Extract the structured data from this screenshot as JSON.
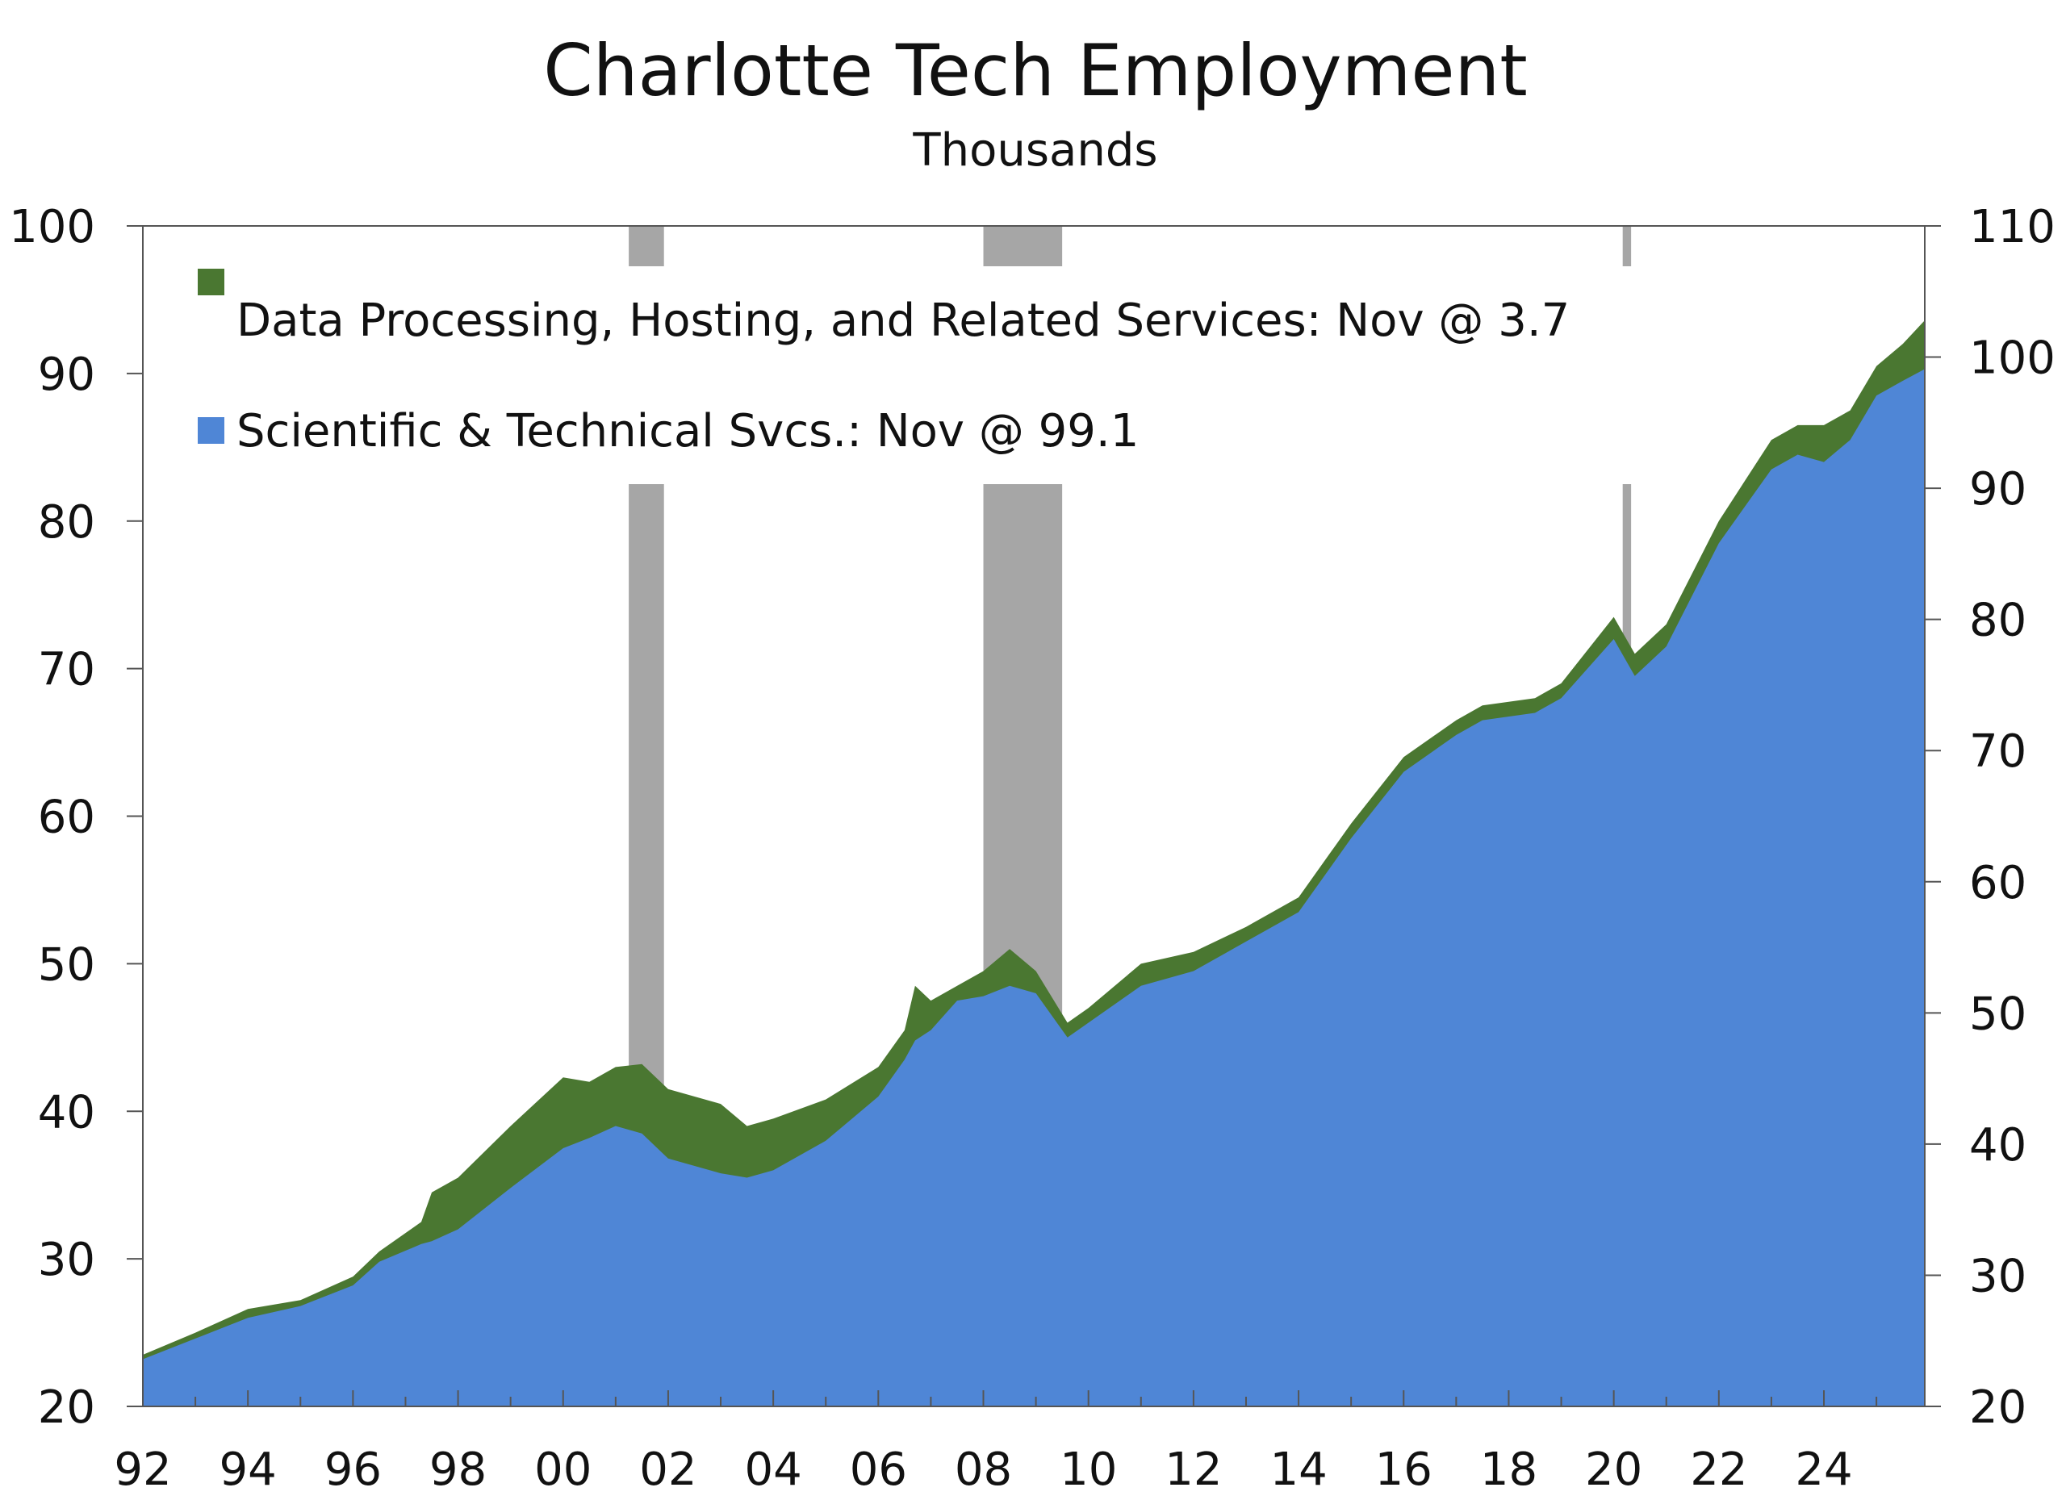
{
  "colors": {
    "area_total": "#4A7731",
    "area_sci": "#4F86D6",
    "recession": "#A6A6A6",
    "axis": "#555555"
  },
  "chart_data": {
    "type": "area",
    "title": "Charlotte Tech Employment",
    "subtitle": "Thousands",
    "x_tick_labels": [
      "92",
      "94",
      "96",
      "98",
      "00",
      "02",
      "04",
      "06",
      "08",
      "10",
      "12",
      "14",
      "16",
      "18",
      "20",
      "22",
      "24"
    ],
    "x_tick_years": [
      1992,
      1994,
      1996,
      1998,
      2000,
      2002,
      2004,
      2006,
      2008,
      2010,
      2012,
      2014,
      2016,
      2018,
      2020,
      2022,
      2024
    ],
    "xlim": [
      1992,
      2025.92
    ],
    "left_axis": {
      "ylim": [
        20,
        100
      ],
      "ticks": [
        20,
        30,
        40,
        50,
        60,
        70,
        80,
        90,
        100
      ]
    },
    "right_axis": {
      "ylim": [
        20,
        110
      ],
      "ticks": [
        20,
        30,
        40,
        50,
        60,
        70,
        80,
        90,
        100,
        110
      ]
    },
    "legend": {
      "placement": "top-left"
    },
    "recessions": [
      [
        2001.25,
        2001.92
      ],
      [
        2008.0,
        2009.5
      ],
      [
        2020.17,
        2020.33
      ]
    ],
    "series": [
      {
        "name": "Data Processing, Hosting, and Related Services: Nov @ 3.7",
        "color_key": "area_total",
        "stacked_total": true,
        "points": [
          [
            1992.0,
            23.5
          ],
          [
            1993.0,
            25.0
          ],
          [
            1994.0,
            26.6
          ],
          [
            1995.0,
            27.2
          ],
          [
            1996.0,
            28.8
          ],
          [
            1996.5,
            30.5
          ],
          [
            1997.3,
            32.5
          ],
          [
            1997.5,
            34.5
          ],
          [
            1998.0,
            35.5
          ],
          [
            1999.0,
            39.0
          ],
          [
            2000.0,
            42.3
          ],
          [
            2000.5,
            42.0
          ],
          [
            2001.0,
            43.0
          ],
          [
            2001.5,
            43.2
          ],
          [
            2002.0,
            41.5
          ],
          [
            2003.0,
            40.5
          ],
          [
            2003.5,
            39.0
          ],
          [
            2004.0,
            39.5
          ],
          [
            2005.0,
            40.8
          ],
          [
            2006.0,
            43.0
          ],
          [
            2006.5,
            45.5
          ],
          [
            2006.7,
            48.5
          ],
          [
            2007.0,
            47.5
          ],
          [
            2007.5,
            48.5
          ],
          [
            2008.0,
            49.5
          ],
          [
            2008.5,
            51.0
          ],
          [
            2009.0,
            49.5
          ],
          [
            2009.6,
            46.0
          ],
          [
            2010.0,
            47.0
          ],
          [
            2011.0,
            50.0
          ],
          [
            2012.0,
            50.8
          ],
          [
            2013.0,
            52.5
          ],
          [
            2014.0,
            54.5
          ],
          [
            2015.0,
            59.5
          ],
          [
            2016.0,
            64.0
          ],
          [
            2017.0,
            66.5
          ],
          [
            2017.5,
            67.5
          ],
          [
            2018.5,
            68.0
          ],
          [
            2019.0,
            69.0
          ],
          [
            2020.0,
            73.5
          ],
          [
            2020.4,
            71.0
          ],
          [
            2021.0,
            73.0
          ],
          [
            2022.0,
            80.0
          ],
          [
            2023.0,
            85.5
          ],
          [
            2023.5,
            86.5
          ],
          [
            2024.0,
            86.5
          ],
          [
            2024.5,
            87.5
          ],
          [
            2025.0,
            90.5
          ],
          [
            2025.5,
            92.0
          ],
          [
            2025.92,
            93.6
          ]
        ]
      },
      {
        "name": "Scientific & Technical Svcs.: Nov @ 99.1",
        "color_key": "area_sci",
        "points": [
          [
            1992.0,
            23.2
          ],
          [
            1993.0,
            24.6
          ],
          [
            1994.0,
            26.0
          ],
          [
            1995.0,
            26.8
          ],
          [
            1996.0,
            28.2
          ],
          [
            1996.5,
            29.8
          ],
          [
            1997.3,
            31.0
          ],
          [
            1997.5,
            31.2
          ],
          [
            1998.0,
            32.0
          ],
          [
            1999.0,
            34.8
          ],
          [
            2000.0,
            37.5
          ],
          [
            2000.5,
            38.2
          ],
          [
            2001.0,
            39.0
          ],
          [
            2001.5,
            38.5
          ],
          [
            2002.0,
            36.8
          ],
          [
            2003.0,
            35.8
          ],
          [
            2003.5,
            35.5
          ],
          [
            2004.0,
            36.0
          ],
          [
            2005.0,
            38.0
          ],
          [
            2006.0,
            41.0
          ],
          [
            2006.5,
            43.5
          ],
          [
            2006.7,
            44.8
          ],
          [
            2007.0,
            45.5
          ],
          [
            2007.5,
            47.5
          ],
          [
            2008.0,
            47.8
          ],
          [
            2008.5,
            48.5
          ],
          [
            2009.0,
            48.0
          ],
          [
            2009.6,
            45.0
          ],
          [
            2010.0,
            46.0
          ],
          [
            2011.0,
            48.5
          ],
          [
            2012.0,
            49.5
          ],
          [
            2013.0,
            51.5
          ],
          [
            2014.0,
            53.5
          ],
          [
            2015.0,
            58.5
          ],
          [
            2016.0,
            63.0
          ],
          [
            2017.0,
            65.5
          ],
          [
            2017.5,
            66.5
          ],
          [
            2018.5,
            67.0
          ],
          [
            2019.0,
            68.0
          ],
          [
            2020.0,
            72.0
          ],
          [
            2020.4,
            69.5
          ],
          [
            2021.0,
            71.5
          ],
          [
            2022.0,
            78.5
          ],
          [
            2023.0,
            83.5
          ],
          [
            2023.5,
            84.5
          ],
          [
            2024.0,
            84.0
          ],
          [
            2024.5,
            85.5
          ],
          [
            2025.0,
            88.5
          ],
          [
            2025.5,
            89.5
          ],
          [
            2025.92,
            90.3
          ]
        ]
      }
    ]
  }
}
